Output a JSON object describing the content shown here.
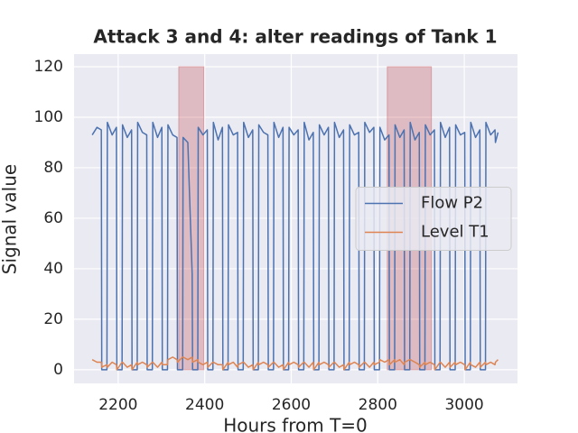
{
  "chart_data": {
    "type": "line",
    "title": "Attack 3 and 4: alter readings of Tank 1",
    "xlabel": "Hours from T=0",
    "ylabel": "Signal value",
    "xlim": [
      2098,
      3123
    ],
    "ylim": [
      -5.4,
      125
    ],
    "xticks": [
      2200,
      2400,
      2600,
      2800,
      3000
    ],
    "yticks": [
      0,
      20,
      40,
      60,
      80,
      100,
      120
    ],
    "grid": true,
    "legend": "center right",
    "shaded_regions": [
      {
        "x": [
          2340,
          2398
        ],
        "y": [
          0,
          120
        ]
      },
      {
        "x": [
          2822,
          2924
        ],
        "y": [
          0,
          120
        ]
      }
    ],
    "shade_color": "#c44e52",
    "x": [
      2140,
      2151,
      2161,
      2162,
      2174,
      2175,
      2186,
      2196,
      2197,
      2209,
      2210,
      2221,
      2231,
      2232,
      2244,
      2245,
      2256,
      2266,
      2267,
      2279,
      2280,
      2291,
      2301,
      2302,
      2314,
      2315,
      2326,
      2336,
      2337,
      2349,
      2350,
      2361,
      2371,
      2372,
      2384,
      2385,
      2396,
      2406,
      2407,
      2419,
      2420,
      2431,
      2441,
      2442,
      2454,
      2455,
      2466,
      2476,
      2477,
      2489,
      2490,
      2501,
      2511,
      2512,
      2524,
      2525,
      2536,
      2546,
      2547,
      2559,
      2560,
      2571,
      2581,
      2582,
      2594,
      2595,
      2606,
      2616,
      2617,
      2629,
      2630,
      2641,
      2651,
      2652,
      2664,
      2665,
      2676,
      2686,
      2687,
      2699,
      2700,
      2711,
      2721,
      2722,
      2734,
      2735,
      2746,
      2756,
      2757,
      2769,
      2770,
      2781,
      2791,
      2792,
      2804,
      2805,
      2816,
      2826,
      2827,
      2839,
      2840,
      2851,
      2861,
      2862,
      2874,
      2875,
      2886,
      2896,
      2897,
      2909,
      2910,
      2921,
      2931,
      2932,
      2944,
      2945,
      2956,
      2966,
      2967,
      2979,
      2980,
      2991,
      3001,
      3002,
      3014,
      3015,
      3026,
      3036,
      3037,
      3049,
      3050,
      3061,
      3071,
      3072,
      3078
    ],
    "series": [
      {
        "name": "Flow P2",
        "color": "#4c72b0",
        "values": [
          93,
          96,
          95,
          0,
          0,
          98,
          93,
          96,
          0,
          0,
          97,
          92,
          95,
          0,
          0,
          98,
          94,
          93,
          0,
          0,
          98,
          92,
          96,
          0,
          0,
          97,
          93,
          92,
          0,
          0,
          92,
          90,
          38,
          0,
          0,
          96,
          93,
          95,
          0,
          0,
          98,
          91,
          96,
          0,
          0,
          97,
          93,
          94,
          0,
          0,
          98,
          92,
          95,
          0,
          0,
          97,
          94,
          93,
          0,
          0,
          98,
          92,
          96,
          0,
          0,
          96,
          93,
          95,
          0,
          0,
          98,
          91,
          94,
          0,
          0,
          97,
          93,
          96,
          0,
          0,
          98,
          92,
          95,
          0,
          0,
          97,
          93,
          94,
          0,
          0,
          98,
          94,
          96,
          0,
          0,
          96,
          91,
          93,
          0,
          0,
          97,
          92,
          95,
          0,
          0,
          98,
          91,
          94,
          0,
          0,
          97,
          93,
          95,
          0,
          0,
          98,
          92,
          96,
          0,
          0,
          97,
          93,
          94,
          0,
          0,
          98,
          92,
          95,
          0,
          0,
          98,
          93,
          95,
          90,
          94
        ]
      },
      {
        "name": "Level T1",
        "color": "#dd8452",
        "values": [
          4,
          3,
          3,
          1,
          2,
          1,
          3,
          2,
          0,
          3,
          3,
          1,
          2,
          0,
          3,
          2,
          3,
          2,
          1,
          3,
          3,
          1,
          3,
          2,
          2,
          4,
          5,
          4,
          3,
          5,
          5,
          4,
          5,
          3,
          4,
          3,
          2,
          3,
          1,
          3,
          3,
          2,
          2,
          0,
          3,
          2,
          3,
          1,
          2,
          3,
          3,
          1,
          2,
          0,
          3,
          2,
          3,
          2,
          1,
          3,
          3,
          1,
          2,
          0,
          3,
          2,
          3,
          2,
          1,
          3,
          3,
          1,
          3,
          0,
          3,
          2,
          3,
          2,
          1,
          3,
          3,
          1,
          2,
          0,
          3,
          2,
          3,
          2,
          1,
          3,
          3,
          1,
          3,
          2,
          3,
          4,
          3,
          4,
          2,
          4,
          3,
          4,
          2,
          3,
          4,
          4,
          3,
          2,
          1,
          3,
          2,
          3,
          2,
          0,
          3,
          3,
          1,
          3,
          1,
          3,
          2,
          3,
          2,
          0,
          3,
          2,
          1,
          3,
          1,
          3,
          2,
          3,
          2,
          3,
          4
        ]
      }
    ]
  }
}
